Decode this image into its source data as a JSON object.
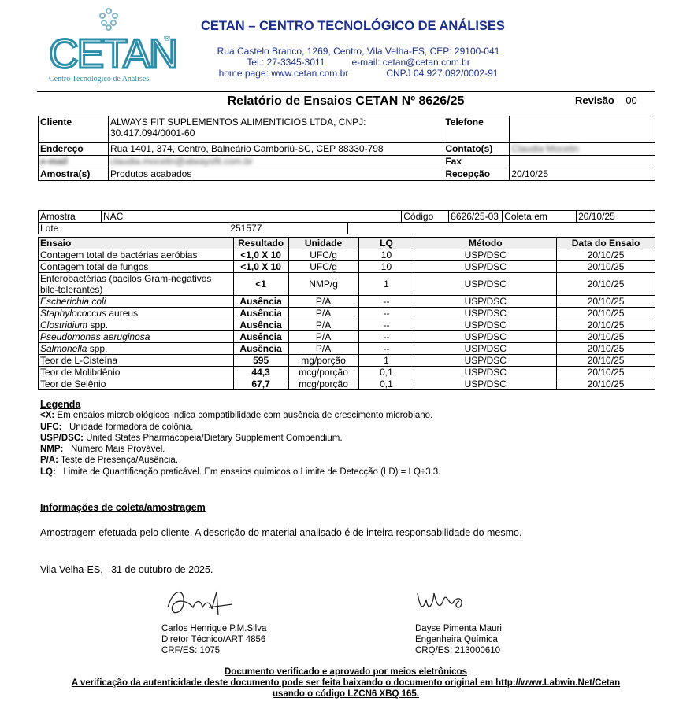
{
  "header": {
    "logo_text": "CETAN",
    "logo_sub": "Centro Tecnológico de Análises",
    "org_title": "CETAN – CENTRO TECNOLÓGICO DE ANÁLISES",
    "address": "Rua Castelo Branco, 1269, Centro, Vila Velha-ES, CEP: 29100-041",
    "phone": "Tel.: 27-3345-3011",
    "email": "e-mail: cetan@cetan.com.br",
    "homepage": "home page: www.cetan.com.br",
    "cnpj": "CNPJ 04.927.092/0002-91",
    "brand_color": "#1b2f8a"
  },
  "report": {
    "title": "Relatório de Ensaios CETAN Nº 8626/25",
    "revision_label": "Revisão",
    "revision": "00"
  },
  "client": {
    "cliente_label": "Cliente",
    "cliente": "ALWAYS FIT SUPLEMENTOS ALIMENTICIOS LTDA, CNPJ: 30.417.094/0001-60",
    "telefone_label": "Telefone",
    "telefone": "",
    "endereco_label": "Endereço",
    "endereco": "Rua 1401, 374, Centro, Balneário Camboriú-SC, CEP 88330-798",
    "contato_label": "Contato(s)",
    "contato": "Claudia Mocelin",
    "email_label": "e-mail",
    "email": "claudia.mocelin@alwaysfit.com.br",
    "fax_label": "Fax",
    "fax": "",
    "amostra_label": "Amostra(s)",
    "amostra": "Produtos acabados",
    "recepcao_label": "Recepção",
    "recepcao": "20/10/25"
  },
  "sample": {
    "amostra_label": "Amostra",
    "amostra": "NAC",
    "codigo_label": "Código",
    "codigo": "8626/25-03",
    "coleta_label": "Coleta em",
    "coleta": "20/10/25",
    "lote_label": "Lote",
    "lote": "251577"
  },
  "results": {
    "headers": [
      "Ensaio",
      "Resultado",
      "Unidade",
      "LQ",
      "Método",
      "Data do Ensaio"
    ],
    "rows": [
      {
        "italic": "",
        "name": "Contagem total de bactérias aeróbias",
        "result": "<1,0 X 10",
        "unit": "UFC/g",
        "lq": "10",
        "method": "USP/DSC",
        "date": "20/10/25"
      },
      {
        "italic": "",
        "name": "Contagem total de fungos",
        "result": "<1,0 X 10",
        "unit": "UFC/g",
        "lq": "10",
        "method": "USP/DSC",
        "date": "20/10/25"
      },
      {
        "italic": "",
        "name": "Enterobactérias (bacilos Gram-negativos bile-tolerantes)",
        "result": "<1",
        "unit": "NMP/g",
        "lq": "1",
        "method": "USP/DSC",
        "date": "20/10/25"
      },
      {
        "italic": "Escherichia coli",
        "name": "",
        "result": "Ausência",
        "unit": "P/A",
        "lq": "--",
        "method": "USP/DSC",
        "date": "20/10/25"
      },
      {
        "italic": "Staphylococcus",
        "name": " aureus",
        "result": "Ausência",
        "unit": "P/A",
        "lq": "--",
        "method": "USP/DSC",
        "date": "20/10/25"
      },
      {
        "italic": "Clostridium",
        "name": " spp.",
        "result": "Ausência",
        "unit": "P/A",
        "lq": "--",
        "method": "USP/DSC",
        "date": "20/10/25"
      },
      {
        "italic": "Pseudomonas aeruginosa",
        "name": "",
        "result": "Ausência",
        "unit": "P/A",
        "lq": "--",
        "method": "USP/DSC",
        "date": "20/10/25"
      },
      {
        "italic": "Salmonella",
        "name": " spp.",
        "result": "Ausência",
        "unit": "P/A",
        "lq": "--",
        "method": "USP/DSC",
        "date": "20/10/25"
      },
      {
        "italic": "",
        "name": "Teor de L-Cisteína",
        "result": "595",
        "unit": "mg/porção",
        "lq": "1",
        "method": "USP/DSC",
        "date": "20/10/25"
      },
      {
        "italic": "",
        "name": "Teor de Molibdênio",
        "result": "44,3",
        "unit": "mcg/porção",
        "lq": "0,1",
        "method": "USP/DSC",
        "date": "20/10/25"
      },
      {
        "italic": "",
        "name": "Teor de Selênio",
        "result": "67,7",
        "unit": "mcg/porção",
        "lq": "0,1",
        "method": "USP/DSC",
        "date": "20/10/25"
      }
    ]
  },
  "legend": {
    "title": "Legenda",
    "items": [
      {
        "term": "<X:",
        "text": " Em ensaios microbiológicos indica compatibilidade com ausência de crescimento microbiano."
      },
      {
        "term": "UFC:",
        "text": "   Unidade formadora de colônia."
      },
      {
        "term": "USP/DSC:",
        "text": " United States Pharmacopeia/Dietary Supplement Compendium."
      },
      {
        "term": "NMP:",
        "text": "   Número Mais Provável."
      },
      {
        "term": "P/A:",
        "text": " Teste de Presença/Ausência."
      },
      {
        "term": "LQ:",
        "text": "   Limite de Quantificação praticável. Em ensaios químicos o Limite de Detecção (LD) = LQ÷3,3."
      }
    ]
  },
  "sampling": {
    "title": "Informações de coleta/amostragem",
    "text": "Amostragem efetuada pelo cliente. A descrição do material analisado é de inteira responsabilidade do mesmo."
  },
  "place_date": "Vila Velha-ES,   31 de outubro de 2025.",
  "signatures": [
    {
      "name": "Carlos Henrique P.M.Silva",
      "role": "Diretor Técnico/ART 4856",
      "reg": "CRF/ES: 1075"
    },
    {
      "name": "Dayse Pimenta Mauri",
      "role": "Engenheira Química",
      "reg": "CRQ/ES: 213000610"
    }
  ],
  "footer": {
    "line1": "Documento verificado e aprovado por meios eletrônicos",
    "line2": "A verificação da autenticidade deste documento pode ser feita baixando o documento original em http://www.Labwin.Net/Cetan",
    "line3": "usando o código LZCN6 XBQ 165."
  }
}
